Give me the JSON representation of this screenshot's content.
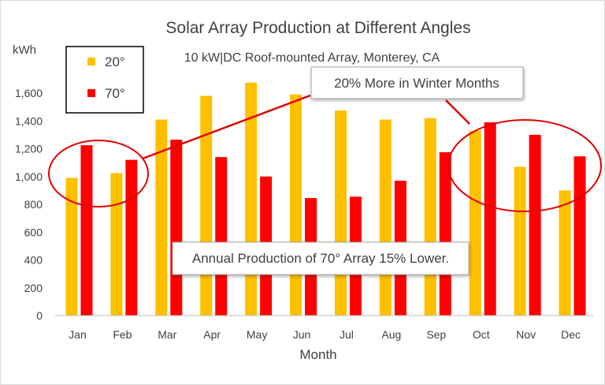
{
  "chart_data": {
    "type": "bar",
    "title": "Solar Array Production at Different Angles",
    "subtitle": "10 kW|DC Roof-mounted Array, Monterey, CA",
    "ylabel": "kWh",
    "xlabel": "Month",
    "ylim": [
      0,
      1800
    ],
    "yticks": [
      0,
      200,
      400,
      600,
      800,
      1000,
      1200,
      1400,
      1600
    ],
    "ytick_labels": [
      "0",
      "200",
      "400",
      "600",
      "800",
      "1,000",
      "1,200",
      "1,400",
      "1,600"
    ],
    "grid": false,
    "legend_position": "top-left",
    "categories": [
      "Jan",
      "Feb",
      "Mar",
      "Apr",
      "May",
      "Jun",
      "Jul",
      "Aug",
      "Sep",
      "Oct",
      "Nov",
      "Dec"
    ],
    "series": [
      {
        "name": "20°",
        "color": "#FFC000",
        "values": [
          990,
          1025,
          1410,
          1580,
          1675,
          1590,
          1475,
          1410,
          1420,
          1330,
          1070,
          900
        ]
      },
      {
        "name": "70°",
        "color": "#FF0000",
        "values": [
          1225,
          1120,
          1265,
          1140,
          1000,
          845,
          855,
          970,
          1175,
          1390,
          1300,
          1145
        ]
      }
    ],
    "annotations": [
      {
        "text": "20% More in Winter Months",
        "points_to": [
          "Jan",
          "Feb",
          "Oct",
          "Nov",
          "Dec"
        ]
      },
      {
        "text": "Annual Production of 70° Array 15% Lower."
      }
    ]
  },
  "colors": {
    "highlight": "#E00000",
    "text": "#404040",
    "axis": "#bfbfbf"
  }
}
